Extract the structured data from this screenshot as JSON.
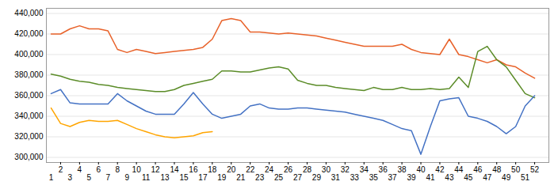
{
  "chart_data": {
    "type": "line",
    "x": [
      1,
      2,
      3,
      4,
      5,
      6,
      7,
      8,
      9,
      10,
      11,
      12,
      13,
      14,
      15,
      16,
      17,
      18,
      19,
      20,
      21,
      22,
      23,
      24,
      25,
      26,
      27,
      28,
      29,
      30,
      31,
      32,
      33,
      34,
      35,
      36,
      37,
      38,
      39,
      40,
      41,
      42,
      43,
      44,
      45,
      46,
      47,
      48,
      49,
      50,
      51,
      52
    ],
    "series": [
      {
        "color": "#E8622A",
        "values": [
          420000,
          420000,
          425000,
          428000,
          425000,
          425000,
          423000,
          405000,
          402000,
          405000,
          403000,
          401000,
          402000,
          403000,
          404000,
          405000,
          407000,
          415000,
          433000,
          435000,
          433000,
          422000,
          422000,
          421000,
          420000,
          421000,
          420000,
          419000,
          418000,
          416000,
          414000,
          412000,
          410000,
          408000,
          408000,
          408000,
          408000,
          410000,
          405000,
          402000,
          401000,
          400000,
          415000,
          400000,
          398000,
          395000,
          392000,
          395000,
          390000,
          388000,
          382000,
          377000
        ]
      },
      {
        "color": "#5B8C28",
        "values": [
          381000,
          379000,
          376000,
          374000,
          373000,
          371000,
          370000,
          368000,
          367000,
          366000,
          365000,
          364000,
          364000,
          366000,
          370000,
          372000,
          374000,
          376000,
          384000,
          384000,
          383000,
          383000,
          385000,
          387000,
          388000,
          386000,
          375000,
          372000,
          370000,
          370000,
          368000,
          367000,
          366000,
          365000,
          368000,
          366000,
          366000,
          368000,
          366000,
          366000,
          367000,
          366000,
          367000,
          378000,
          368000,
          403000,
          408000,
          395000,
          388000,
          375000,
          362000,
          358000
        ]
      },
      {
        "color": "#4472C4",
        "values": [
          362000,
          366000,
          353000,
          352000,
          352000,
          352000,
          352000,
          362000,
          355000,
          350000,
          345000,
          342000,
          342000,
          342000,
          352000,
          363000,
          352000,
          342000,
          338000,
          340000,
          342000,
          350000,
          352000,
          348000,
          347000,
          347000,
          348000,
          348000,
          347000,
          346000,
          345000,
          344000,
          342000,
          340000,
          338000,
          336000,
          332000,
          328000,
          326000,
          303000,
          330000,
          355000,
          357000,
          358000,
          340000,
          338000,
          335000,
          330000,
          323000,
          330000,
          350000,
          360000
        ]
      },
      {
        "color": "#FFA500",
        "values": [
          348000,
          333000,
          330000,
          334000,
          336000,
          335000,
          335000,
          336000,
          332000,
          328000,
          325000,
          322000,
          320000,
          319000,
          320000,
          321000,
          324000,
          325000,
          null,
          null,
          null,
          null,
          null,
          null,
          null,
          null,
          null,
          null,
          null,
          null,
          null,
          null,
          null,
          null,
          null,
          null,
          null,
          null,
          null,
          null,
          null,
          null,
          null,
          null,
          null,
          null,
          null,
          null,
          null,
          null,
          null,
          null
        ]
      }
    ],
    "xlim": [
      0.5,
      53.5
    ],
    "xticks": [
      1,
      2,
      3,
      4,
      5,
      6,
      7,
      8,
      9,
      10,
      11,
      12,
      13,
      14,
      15,
      16,
      17,
      18,
      19,
      20,
      21,
      22,
      23,
      24,
      25,
      26,
      27,
      28,
      29,
      30,
      31,
      32,
      33,
      34,
      35,
      36,
      37,
      38,
      39,
      40,
      41,
      42,
      43,
      44,
      45,
      46,
      47,
      48,
      49,
      50,
      51,
      52
    ],
    "ylim": [
      295000,
      445000
    ],
    "yticks": [
      {
        "value": 300000,
        "label": "300,000"
      },
      {
        "value": 320000,
        "label": "320,000"
      },
      {
        "value": 340000,
        "label": "340,000"
      },
      {
        "value": 360000,
        "label": "360,000"
      },
      {
        "value": 380000,
        "label": "380,000"
      },
      {
        "value": 400000,
        "label": "400,000"
      },
      {
        "value": 420000,
        "label": "420,000"
      },
      {
        "value": 440000,
        "label": "440,000"
      }
    ],
    "grid": true
  }
}
